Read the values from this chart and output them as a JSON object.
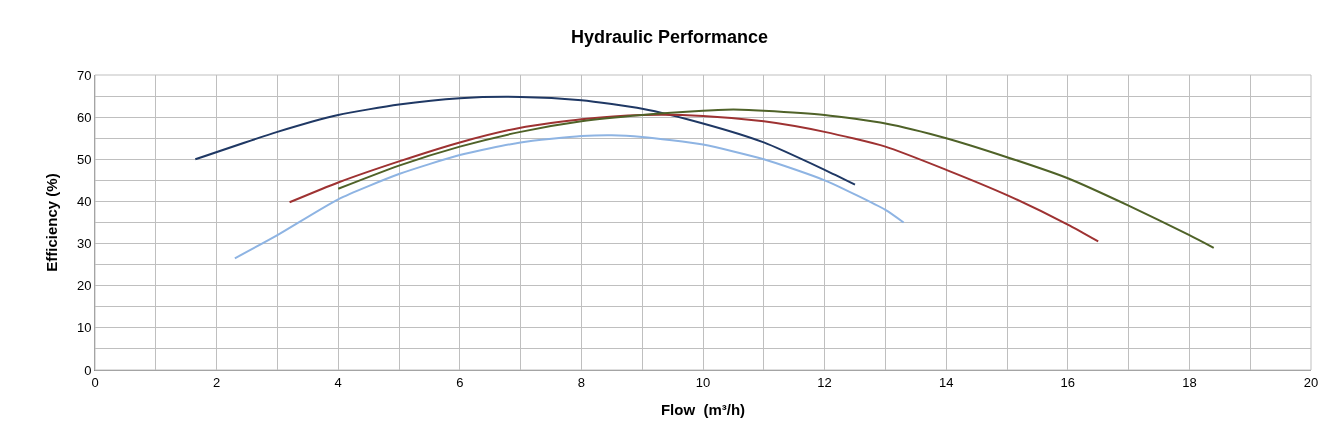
{
  "chart_data": {
    "type": "line",
    "title": "Hydraulic Performance",
    "xlabel": "Flow  (m³/h)",
    "ylabel": "Efficiency (%)",
    "xlim": [
      0,
      20
    ],
    "ylim": [
      0,
      70
    ],
    "xticks": [
      0,
      {
        "value": 1,
        "label": null
      },
      2,
      {
        "value": 3,
        "label": null
      },
      4,
      {
        "value": 5,
        "label": null
      },
      6,
      {
        "value": 7,
        "label": null
      },
      8,
      {
        "value": 9,
        "label": null
      },
      10,
      {
        "value": 11,
        "label": null
      },
      12,
      {
        "value": 13,
        "label": null
      },
      14,
      {
        "value": 15,
        "label": null
      },
      16,
      {
        "value": 17,
        "label": null
      },
      18,
      {
        "value": 19,
        "label": null
      },
      20
    ],
    "yticks": [
      0,
      {
        "value": 5,
        "label": null
      },
      10,
      {
        "value": 15,
        "label": null
      },
      20,
      {
        "value": 25,
        "label": null
      },
      30,
      {
        "value": 35,
        "label": null
      },
      40,
      {
        "value": 45,
        "label": null
      },
      50,
      {
        "value": 55,
        "label": null
      },
      60,
      {
        "value": 65,
        "label": null
      },
      70
    ],
    "grid": true,
    "marker": "none",
    "line_style": "solid",
    "series": [
      {
        "color": "#1f3864",
        "x": [
          1.65,
          3,
          4,
          5,
          6,
          7,
          8,
          9,
          10,
          11,
          12,
          12.5
        ],
        "values": [
          50,
          56.5,
          60.5,
          63,
          64.5,
          64.8,
          64,
          62,
          58.5,
          54,
          47.5,
          44
        ]
      },
      {
        "color": "#9e3232",
        "x": [
          3.2,
          4,
          5,
          6,
          7,
          8,
          9,
          10,
          11,
          12,
          13,
          14,
          15,
          16,
          16.5
        ],
        "values": [
          39.8,
          44.5,
          49.5,
          54,
          57.5,
          59.5,
          60.5,
          60.3,
          59,
          56.5,
          53,
          47.5,
          41.5,
          34.5,
          30.5
        ]
      },
      {
        "color": "#4f6228",
        "x": [
          4,
          5,
          6,
          7,
          8,
          9,
          10,
          10.5,
          11,
          12,
          13,
          14,
          15,
          16,
          17,
          18,
          18.4
        ],
        "values": [
          43,
          48.5,
          53,
          56.5,
          59,
          60.5,
          61.5,
          61.8,
          61.5,
          60.5,
          58.5,
          55,
          50.5,
          45.5,
          39,
          32,
          29
        ]
      },
      {
        "color": "#8eb4e3",
        "x": [
          2.3,
          3,
          4,
          5,
          6,
          7,
          8,
          8.5,
          9,
          10,
          11,
          12,
          13,
          13.3
        ],
        "values": [
          26.5,
          32,
          40.5,
          46.5,
          51,
          54,
          55.5,
          55.7,
          55.3,
          53.5,
          50,
          45,
          38,
          35
        ]
      }
    ]
  }
}
